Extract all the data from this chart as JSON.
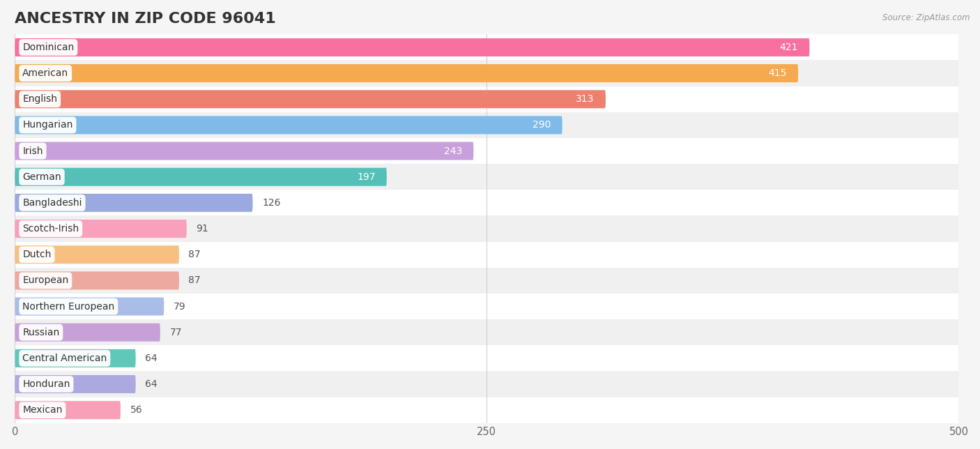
{
  "title": "ANCESTRY IN ZIP CODE 96041",
  "source": "Source: ZipAtlas.com",
  "categories": [
    "Dominican",
    "American",
    "English",
    "Hungarian",
    "Irish",
    "German",
    "Bangladeshi",
    "Scotch-Irish",
    "Dutch",
    "European",
    "Northern European",
    "Russian",
    "Central American",
    "Honduran",
    "Mexican"
  ],
  "values": [
    421,
    415,
    313,
    290,
    243,
    197,
    126,
    91,
    87,
    87,
    79,
    77,
    64,
    64,
    56
  ],
  "bar_colors": [
    "#F870A0",
    "#F5AA50",
    "#EE8070",
    "#80BAE8",
    "#C8A0DC",
    "#55C0B8",
    "#9AAAE0",
    "#F8A0BC",
    "#F8C080",
    "#EDA8A0",
    "#AABCE8",
    "#C8A0D8",
    "#60C8B8",
    "#ACA8E0",
    "#F8A0B8"
  ],
  "xlim": [
    0,
    500
  ],
  "xticks": [
    0,
    250,
    500
  ],
  "background_color": "#f5f5f5",
  "row_colors": [
    "#ffffff",
    "#f0f0f0"
  ],
  "title_fontsize": 16,
  "label_fontsize": 10,
  "value_fontsize": 10,
  "inside_value_threshold": 150
}
